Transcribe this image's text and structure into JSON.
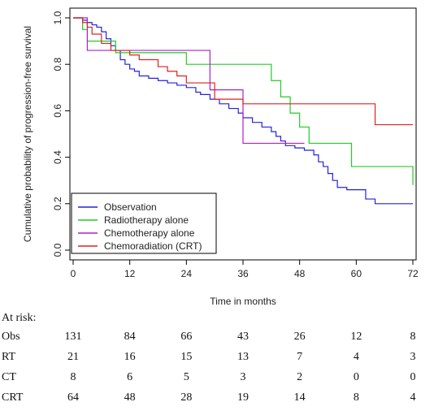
{
  "chart_data": {
    "type": "line",
    "step": true,
    "xlabel": "Time in months",
    "ylabel": "Cumulative probability of progression-free survival",
    "xlim": [
      0,
      72
    ],
    "ylim": [
      0,
      1
    ],
    "xticks": [
      0,
      12,
      24,
      36,
      48,
      60,
      72
    ],
    "yticks": [
      0.0,
      0.2,
      0.4,
      0.6,
      0.8,
      1.0
    ],
    "ytick_labels": [
      "0.0",
      "0.2",
      "0.4",
      "0.6",
      "0.8",
      "1.0"
    ],
    "grid": false,
    "legend_position": "bottom-left",
    "series": [
      {
        "name": "Observation",
        "color": "#2222dd",
        "points": [
          [
            0,
            1.0
          ],
          [
            2,
            0.99
          ],
          [
            3,
            0.98
          ],
          [
            4,
            0.97
          ],
          [
            5,
            0.96
          ],
          [
            6,
            0.94
          ],
          [
            7,
            0.91
          ],
          [
            8,
            0.88
          ],
          [
            9,
            0.86
          ],
          [
            10,
            0.82
          ],
          [
            11,
            0.8
          ],
          [
            12,
            0.78
          ],
          [
            13,
            0.77
          ],
          [
            14,
            0.75
          ],
          [
            16,
            0.74
          ],
          [
            18,
            0.73
          ],
          [
            20,
            0.72
          ],
          [
            22,
            0.71
          ],
          [
            24,
            0.7
          ],
          [
            26,
            0.68
          ],
          [
            27,
            0.67
          ],
          [
            29,
            0.65
          ],
          [
            31,
            0.63
          ],
          [
            33,
            0.61
          ],
          [
            35,
            0.59
          ],
          [
            36,
            0.57
          ],
          [
            38,
            0.55
          ],
          [
            40,
            0.53
          ],
          [
            42,
            0.51
          ],
          [
            43,
            0.49
          ],
          [
            44,
            0.47
          ],
          [
            45,
            0.45
          ],
          [
            47,
            0.44
          ],
          [
            49,
            0.43
          ],
          [
            51,
            0.41
          ],
          [
            52,
            0.38
          ],
          [
            53,
            0.36
          ],
          [
            54,
            0.33
          ],
          [
            55,
            0.3
          ],
          [
            56,
            0.27
          ],
          [
            58,
            0.26
          ],
          [
            62,
            0.22
          ],
          [
            64,
            0.2
          ],
          [
            72,
            0.2
          ]
        ]
      },
      {
        "name": "Radiotherapy alone",
        "color": "#22cc22",
        "points": [
          [
            0,
            1.0
          ],
          [
            2,
            0.95
          ],
          [
            3,
            0.9
          ],
          [
            9,
            0.85
          ],
          [
            24,
            0.8
          ],
          [
            42,
            0.73
          ],
          [
            44,
            0.66
          ],
          [
            46,
            0.59
          ],
          [
            48,
            0.53
          ],
          [
            50,
            0.46
          ],
          [
            59,
            0.36
          ],
          [
            72,
            0.28
          ]
        ]
      },
      {
        "name": "Chemotherapy alone",
        "color": "#aa22cc",
        "points": [
          [
            0,
            1.0
          ],
          [
            3,
            0.86
          ],
          [
            29,
            0.69
          ],
          [
            36,
            0.46
          ],
          [
            49,
            0.46
          ]
        ]
      },
      {
        "name": "Chemoradiation (CRT)",
        "color": "#dd2222",
        "points": [
          [
            0,
            1.0
          ],
          [
            2,
            0.98
          ],
          [
            3,
            0.96
          ],
          [
            4,
            0.93
          ],
          [
            6,
            0.89
          ],
          [
            8,
            0.86
          ],
          [
            12,
            0.84
          ],
          [
            14,
            0.82
          ],
          [
            18,
            0.79
          ],
          [
            20,
            0.77
          ],
          [
            22,
            0.75
          ],
          [
            24,
            0.72
          ],
          [
            30,
            0.65
          ],
          [
            36,
            0.63
          ],
          [
            64,
            0.54
          ],
          [
            72,
            0.54
          ]
        ]
      }
    ]
  },
  "at_risk": {
    "title": "At risk:",
    "times": [
      0,
      12,
      24,
      36,
      48,
      60,
      72
    ],
    "rows": [
      {
        "name": "Obs",
        "counts": [
          "131",
          "84",
          "66",
          "43",
          "26",
          "12",
          "8"
        ]
      },
      {
        "name": "RT",
        "counts": [
          "21",
          "16",
          "15",
          "13",
          "7",
          "4",
          "3"
        ]
      },
      {
        "name": "CT",
        "counts": [
          "8",
          "6",
          "5",
          "3",
          "2",
          "0",
          "0"
        ]
      },
      {
        "name": "CRT",
        "counts": [
          "64",
          "48",
          "28",
          "19",
          "14",
          "8",
          "4"
        ]
      }
    ]
  }
}
